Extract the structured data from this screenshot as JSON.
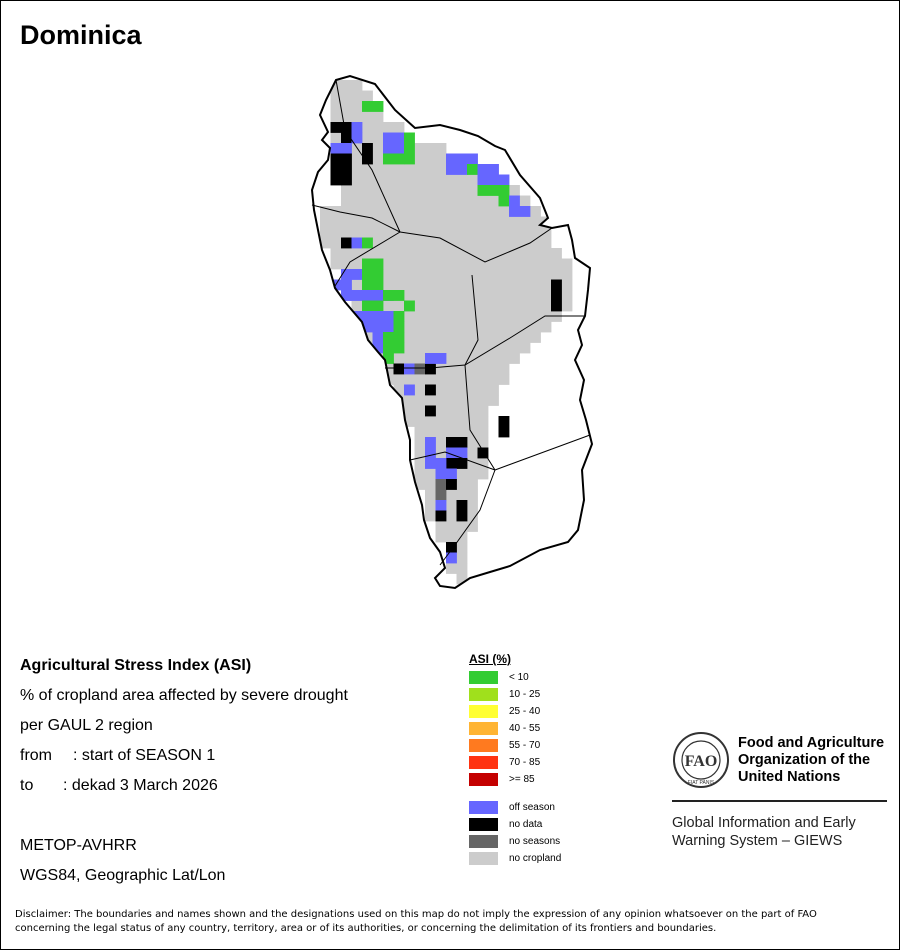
{
  "title": "Dominica",
  "info": {
    "heading": "Agricultural Stress Index (ASI)",
    "line1": "% of cropland area affected by severe drought",
    "line2": "per GAUL 2 region",
    "from_label": "from",
    "from_value": ": start of SEASON 1",
    "to_label": "to",
    "to_value": ": dekad 3 March 2026",
    "sensor": "METOP-AVHRR",
    "projection": "WGS84, Geographic Lat/Lon"
  },
  "legend": {
    "title": "ASI (%)",
    "classes": [
      {
        "label": "< 10",
        "color": "#33cc33"
      },
      {
        "label": "10 - 25",
        "color": "#a0e01c"
      },
      {
        "label": "25 - 40",
        "color": "#ffff33"
      },
      {
        "label": "40 - 55",
        "color": "#ffb433"
      },
      {
        "label": "55 - 70",
        "color": "#ff7a1f"
      },
      {
        "label": "70 - 85",
        "color": "#ff3311"
      },
      {
        "label": ">= 85",
        "color": "#c40000"
      }
    ],
    "other": [
      {
        "label": "off season",
        "color": "#6666ff"
      },
      {
        "label": "no data",
        "color": "#000000"
      },
      {
        "label": "no seasons",
        "color": "#666666"
      },
      {
        "label": "no cropland",
        "color": "#cccccc"
      }
    ]
  },
  "fao": {
    "logo_text": "FAO",
    "motto": "FIAT PANIS",
    "name_lines": [
      "Food and Agriculture",
      "Organization of the",
      "United Nations"
    ],
    "giews_lines": [
      "Global Information and Early",
      "Warning System – GIEWS"
    ]
  },
  "disclaimer": "Disclaimer: The boundaries and names shown and the designations used on this map do not imply the expression of any opinion whatsoever on the part of FAO concerning the legal status of any country, territory, area or of its authorities, or concerning the delimitation of its frontiers and boundaries."
}
